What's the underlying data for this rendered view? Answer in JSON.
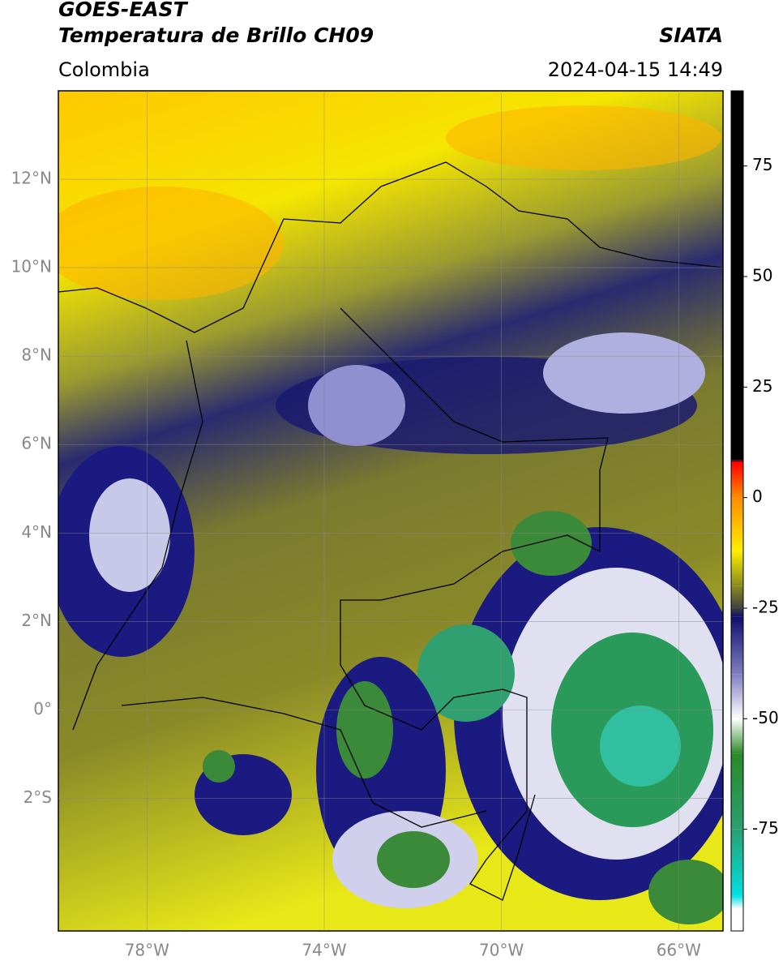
{
  "chart_data": {
    "type": "map",
    "title": "GOES-EAST",
    "subtitle": "Temperatura de Brillo CH09",
    "source": "SIATA",
    "region": "Colombia",
    "datetime": "2024-04-15 14:49",
    "xlim": [
      -80,
      -65
    ],
    "ylim": [
      -5,
      14
    ],
    "xticks": [
      {
        "value": -78,
        "label": "78°W"
      },
      {
        "value": -74,
        "label": "74°W"
      },
      {
        "value": -70,
        "label": "70°W"
      },
      {
        "value": -66,
        "label": "66°W"
      }
    ],
    "yticks": [
      {
        "value": 12,
        "label": "12°N"
      },
      {
        "value": 10,
        "label": "10°N"
      },
      {
        "value": 8,
        "label": "8°N"
      },
      {
        "value": 6,
        "label": "6°N"
      },
      {
        "value": 4,
        "label": "4°N"
      },
      {
        "value": 2,
        "label": "2°N"
      },
      {
        "value": 0,
        "label": "0°"
      },
      {
        "value": -2,
        "label": "2°S"
      }
    ],
    "grid": true,
    "colorbar": {
      "lim": [
        -98,
        92
      ],
      "ticks": [
        75,
        50,
        25,
        0,
        -25,
        -50,
        -75
      ],
      "stops": [
        {
          "value": 92,
          "color": "#000000"
        },
        {
          "value": 8.5,
          "color": "#000000"
        },
        {
          "value": 8,
          "color": "#ff0000"
        },
        {
          "value": 0,
          "color": "#ff8c00"
        },
        {
          "value": -12,
          "color": "#ffee00"
        },
        {
          "value": -20,
          "color": "#8a8a20"
        },
        {
          "value": -25,
          "color": "#404040"
        },
        {
          "value": -27,
          "color": "#10106e"
        },
        {
          "value": -40,
          "color": "#8080c0"
        },
        {
          "value": -50,
          "color": "#ffffff"
        },
        {
          "value": -58,
          "color": "#2a8a2a"
        },
        {
          "value": -75,
          "color": "#2aa070"
        },
        {
          "value": -90,
          "color": "#00e0e0"
        },
        {
          "value": -93,
          "color": "#ffffff"
        },
        {
          "value": -98,
          "color": "#ffffff"
        }
      ]
    }
  }
}
